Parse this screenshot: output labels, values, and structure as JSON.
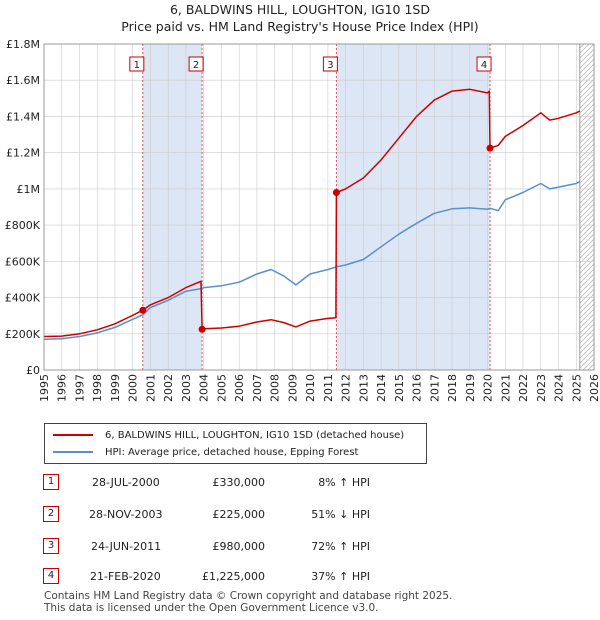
{
  "title": "6, BALDWINS HILL, LOUGHTON, IG10 1SD",
  "subtitle": "Price paid vs. HM Land Registry's House Price Index (HPI)",
  "legend": {
    "property": "6, BALDWINS HILL, LOUGHTON, IG10 1SD (detached house)",
    "hpi": "HPI: Average price, detached house, Epping Forest"
  },
  "colors": {
    "property": "#cc0000",
    "hpi": "#5b8fcc",
    "shade": "#dde6f5",
    "grid": "#cccccc"
  },
  "transactions": [
    {
      "marker": "1",
      "date": "28-JUL-2000",
      "price": "£330,000",
      "hpi_change": "8% ↑ HPI"
    },
    {
      "marker": "2",
      "date": "28-NOV-2003",
      "price": "£225,000",
      "hpi_change": "51% ↓ HPI"
    },
    {
      "marker": "3",
      "date": "24-JUN-2011",
      "price": "£980,000",
      "hpi_change": "72% ↑ HPI"
    },
    {
      "marker": "4",
      "date": "21-FEB-2020",
      "price": "£1,225,000",
      "hpi_change": "37% ↑ HPI"
    }
  ],
  "footer": {
    "line1": "Contains HM Land Registry data © Crown copyright and database right 2025.",
    "line2": "This data is licensed under the Open Government Licence v3.0."
  },
  "chart_data": {
    "type": "line",
    "xlim": [
      1995,
      2026
    ],
    "ylim": [
      0,
      1800000
    ],
    "x_ticks": [
      "1995",
      "1996",
      "1997",
      "1998",
      "1999",
      "2000",
      "2001",
      "2002",
      "2003",
      "2004",
      "2005",
      "2006",
      "2007",
      "2008",
      "2009",
      "2010",
      "2011",
      "2012",
      "2013",
      "2014",
      "2015",
      "2016",
      "2017",
      "2018",
      "2019",
      "2020",
      "2021",
      "2022",
      "2023",
      "2024",
      "2025",
      "2026"
    ],
    "y_ticks": [
      {
        "value": 0,
        "label": "£0"
      },
      {
        "value": 200000,
        "label": "£200K"
      },
      {
        "value": 400000,
        "label": "£400K"
      },
      {
        "value": 600000,
        "label": "£600K"
      },
      {
        "value": 800000,
        "label": "£800K"
      },
      {
        "value": 1000000,
        "label": "£1M"
      },
      {
        "value": 1200000,
        "label": "£1.2M"
      },
      {
        "value": 1400000,
        "label": "£1.4M"
      },
      {
        "value": 1600000,
        "label": "£1.6M"
      },
      {
        "value": 1800000,
        "label": "£1.8M"
      }
    ],
    "shaded_ranges": [
      [
        2000.57,
        2003.91
      ],
      [
        2011.48,
        2020.14
      ]
    ],
    "forecast_from": 2025.2,
    "sales": [
      {
        "label": "1",
        "x": 2000.57,
        "y": 330000
      },
      {
        "label": "2",
        "x": 2003.91,
        "y": 225000
      },
      {
        "label": "3",
        "x": 2011.48,
        "y": 980000
      },
      {
        "label": "4",
        "x": 2020.14,
        "y": 1225000
      }
    ],
    "series": [
      {
        "name": "HPI: Average price, detached house, Epping Forest",
        "x": [
          1995,
          1996,
          1997,
          1998,
          1999,
          2000,
          2000.57,
          2001,
          2002,
          2003,
          2003.91,
          2004,
          2005,
          2006,
          2007,
          2007.8,
          2008.5,
          2009.2,
          2010,
          2011,
          2011.48,
          2012,
          2013,
          2014,
          2015,
          2016,
          2017,
          2018,
          2019,
          2020,
          2020.14,
          2020.6,
          2021,
          2022,
          2023,
          2023.5,
          2024,
          2025,
          2025.2
        ],
        "y": [
          170000,
          172000,
          185000,
          205000,
          235000,
          280000,
          305000,
          345000,
          385000,
          435000,
          450000,
          455000,
          465000,
          485000,
          530000,
          555000,
          520000,
          470000,
          530000,
          555000,
          570000,
          580000,
          610000,
          680000,
          750000,
          810000,
          865000,
          890000,
          895000,
          888000,
          893000,
          880000,
          940000,
          980000,
          1030000,
          1000000,
          1010000,
          1030000,
          1040000
        ]
      },
      {
        "name": "6, BALDWINS HILL, LOUGHTON, IG10 1SD (detached house)",
        "x": [
          1995,
          1996,
          1997,
          1998,
          1999,
          2000,
          2000.57,
          2001,
          2002,
          2003,
          2003.85,
          2003.91,
          2004,
          2005,
          2006,
          2007,
          2007.8,
          2008.5,
          2009.2,
          2010,
          2011,
          2011.45,
          2011.48,
          2012,
          2013,
          2014,
          2015,
          2016,
          2017,
          2018,
          2019,
          2020,
          2020.1,
          2020.14,
          2020.6,
          2021,
          2022,
          2023,
          2023.5,
          2024,
          2025,
          2025.2
        ],
        "y": [
          185000,
          187000,
          200000,
          222000,
          255000,
          302000,
          330000,
          360000,
          400000,
          455000,
          490000,
          225000,
          228000,
          232000,
          242000,
          265000,
          278000,
          262000,
          238000,
          270000,
          285000,
          288000,
          980000,
          1000000,
          1060000,
          1160000,
          1280000,
          1400000,
          1490000,
          1540000,
          1550000,
          1530000,
          1540000,
          1225000,
          1240000,
          1290000,
          1350000,
          1420000,
          1380000,
          1390000,
          1420000,
          1430000
        ]
      }
    ]
  }
}
